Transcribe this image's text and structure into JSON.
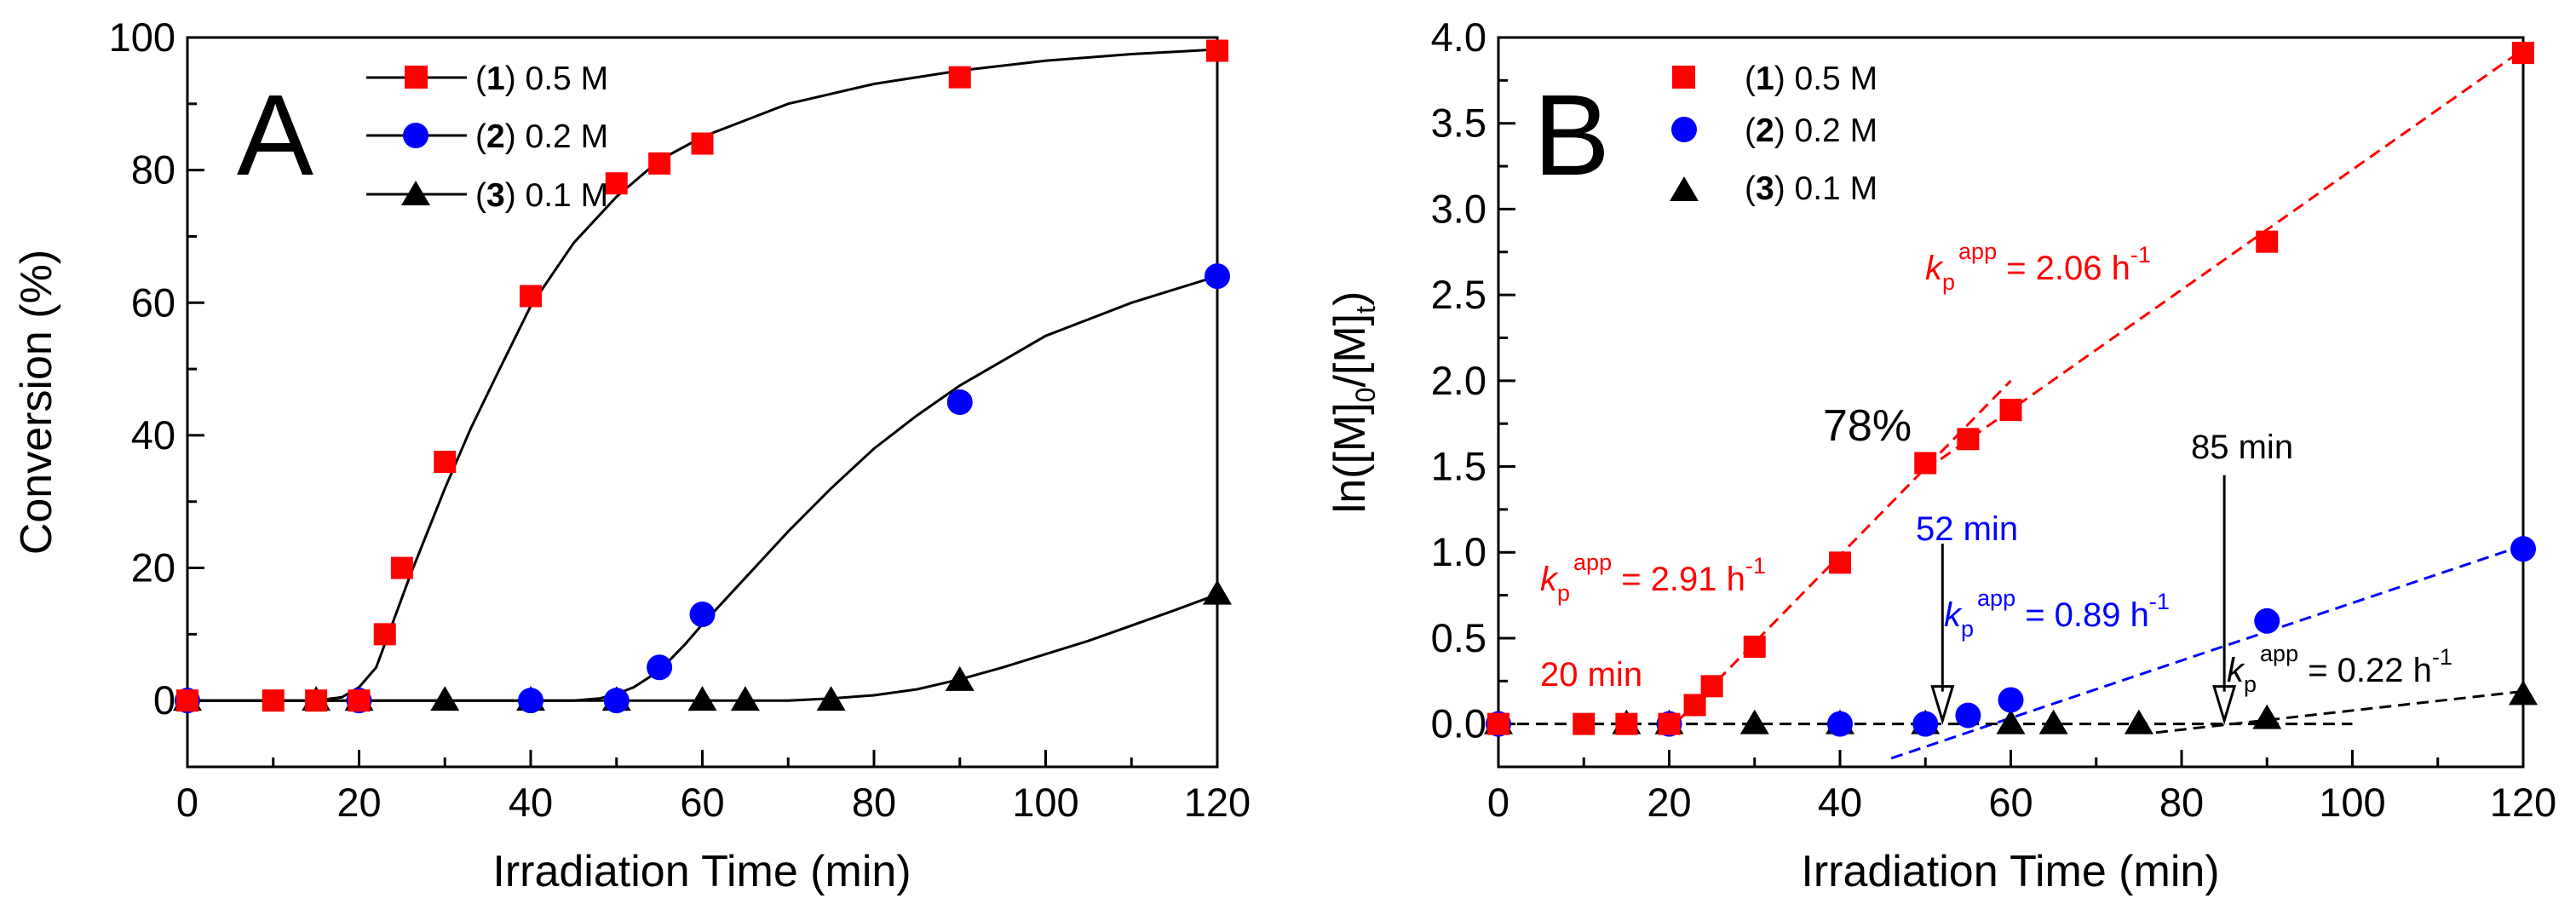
{
  "chart_data": [
    {
      "panel": "A",
      "type": "line",
      "xlabel": "Irradiation Time (min)",
      "ylabel": "Conversion (%)",
      "xlim": [
        0,
        120
      ],
      "ylim": [
        -10,
        100
      ],
      "xticks": [
        "0",
        "20",
        "40",
        "60",
        "80",
        "100",
        "120"
      ],
      "yticks": [
        "0",
        "20",
        "40",
        "60",
        "80",
        "100"
      ],
      "legend_position": "top-left",
      "series": [
        {
          "num": "1",
          "label_rest": ") 0.5 M",
          "color": "#ff0000",
          "marker": "square",
          "x": [
            0,
            10,
            15,
            20,
            23,
            25,
            30,
            40,
            50,
            55,
            60,
            90,
            120
          ],
          "y": [
            0,
            0,
            0,
            0,
            10,
            20,
            36,
            61,
            78,
            81,
            84,
            94,
            98
          ]
        },
        {
          "num": "2",
          "label_rest": ") 0.2 M",
          "color": "#0000ff",
          "marker": "circle",
          "x": [
            0,
            20,
            40,
            50,
            55,
            60,
            90,
            120
          ],
          "y": [
            0,
            0,
            0,
            0,
            5,
            13,
            45,
            64
          ]
        },
        {
          "num": "3",
          "label_rest": ") 0.1 M",
          "color": "#000000",
          "marker": "triangle",
          "x": [
            0,
            15,
            20,
            30,
            40,
            50,
            60,
            65,
            75,
            90,
            120
          ],
          "y": [
            0,
            0,
            0,
            0,
            0,
            0,
            0,
            0,
            0,
            3,
            16
          ]
        }
      ],
      "fit_curves": [
        {
          "x": [
            0,
            15,
            18,
            20,
            22,
            24,
            26,
            28,
            30,
            33,
            36,
            40,
            45,
            50,
            55,
            60,
            70,
            80,
            90,
            100,
            110,
            120
          ],
          "y": [
            0,
            0,
            0.5,
            2,
            5,
            12,
            19,
            25.5,
            32,
            41,
            49,
            59.5,
            69,
            76,
            81.5,
            85,
            90,
            93,
            95,
            96.5,
            97.5,
            98.2
          ]
        },
        {
          "x": [
            0,
            45,
            48,
            50,
            52,
            55,
            58,
            60,
            65,
            70,
            75,
            80,
            85,
            90,
            100,
            110,
            120
          ],
          "y": [
            0,
            0,
            0.3,
            1,
            2,
            4.5,
            8.5,
            11.5,
            18.5,
            25.5,
            32,
            38,
            43,
            47.5,
            55,
            60,
            64
          ]
        },
        {
          "x": [
            0,
            70,
            75,
            80,
            85,
            90,
            95,
            100,
            105,
            110,
            115,
            120
          ],
          "y": [
            0,
            0,
            0.3,
            0.8,
            1.7,
            3.2,
            5.0,
            7.0,
            9.0,
            11.3,
            13.6,
            16
          ]
        }
      ]
    },
    {
      "panel": "B",
      "type": "scatter",
      "xlabel": "Irradiation Time (min)",
      "ylabel": "ln([M]0/[M]t)",
      "xlim": [
        0,
        120
      ],
      "ylim": [
        -0.25,
        4.0
      ],
      "xticks": [
        "0",
        "20",
        "40",
        "60",
        "80",
        "100",
        "120"
      ],
      "yticks": [
        "0.0",
        "0.5",
        "1.0",
        "1.5",
        "2.0",
        "2.5",
        "3.0",
        "3.5",
        "4.0"
      ],
      "legend_position": "top-left",
      "series": [
        {
          "num": "1",
          "label_rest": ") 0.5 M",
          "color": "#ff0000",
          "marker": "square",
          "x": [
            0,
            10,
            15,
            20,
            23,
            25,
            30,
            40,
            50,
            55,
            60,
            90,
            120
          ],
          "y": [
            0,
            0,
            0,
            0,
            0.11,
            0.22,
            0.45,
            0.94,
            1.52,
            1.66,
            1.83,
            2.81,
            3.91
          ]
        },
        {
          "num": "2",
          "label_rest": ") 0.2 M",
          "color": "#0000ff",
          "marker": "circle",
          "x": [
            0,
            20,
            40,
            50,
            55,
            60,
            90,
            120
          ],
          "y": [
            0,
            0,
            0,
            0,
            0.05,
            0.14,
            0.6,
            1.02
          ]
        },
        {
          "num": "3",
          "label_rest": ") 0.1 M",
          "color": "#000000",
          "marker": "triangle",
          "x": [
            0,
            15,
            20,
            30,
            40,
            50,
            60,
            65,
            75,
            90,
            120
          ],
          "y": [
            0,
            0,
            0,
            0,
            0,
            0,
            0,
            0,
            0,
            0.03,
            0.17
          ]
        }
      ],
      "fit_lines": [
        {
          "color": "#ff0000",
          "x": [
            19.5,
            60
          ],
          "y": [
            -0.06,
            2.0
          ]
        },
        {
          "color": "#ff0000",
          "x": [
            50,
            120
          ],
          "y": [
            1.48,
            3.93
          ]
        },
        {
          "color": "#0000ff",
          "x": [
            46,
            120
          ],
          "y": [
            -0.2,
            1.04
          ]
        },
        {
          "color": "#000000",
          "x": [
            0,
            100
          ],
          "y": [
            0,
            0
          ]
        },
        {
          "color": "#000000",
          "x": [
            77,
            120
          ],
          "y": [
            -0.05,
            0.19
          ]
        }
      ],
      "annotations": {
        "k1_late": {
          "prefix": "k",
          "sub": "p",
          "sup": "app",
          "eq": " = 2.06 h",
          "unit_sup": "-1"
        },
        "k1_early": {
          "prefix": "k",
          "sub": "p",
          "sup": "app",
          "eq": " = 2.91 h",
          "unit_sup": "-1"
        },
        "k2": {
          "prefix": "k",
          "sub": "p",
          "sup": "app",
          "eq": " = 0.89 h",
          "unit_sup": "-1"
        },
        "k3": {
          "prefix": "k",
          "sub": "p",
          "sup": "app",
          "eq": " = 0.22 h",
          "unit_sup": "-1"
        },
        "pct": "78%",
        "t20": "20 min",
        "t52": "52 min",
        "t85": "85 min"
      },
      "arrows": [
        {
          "name": "arrow-52-min",
          "x": 52,
          "y_from": 1.05,
          "y_to": 0.02,
          "color": "#000000"
        },
        {
          "name": "arrow-85-min",
          "x": 85,
          "y_from": 1.45,
          "y_to": 0.02,
          "color": "#000000"
        }
      ]
    }
  ],
  "axis_label_parts": {
    "ylabel_b": {
      "a": "ln([M]",
      "s1": "0",
      "b": "/[M]",
      "s2": "t",
      "c": ")"
    }
  }
}
